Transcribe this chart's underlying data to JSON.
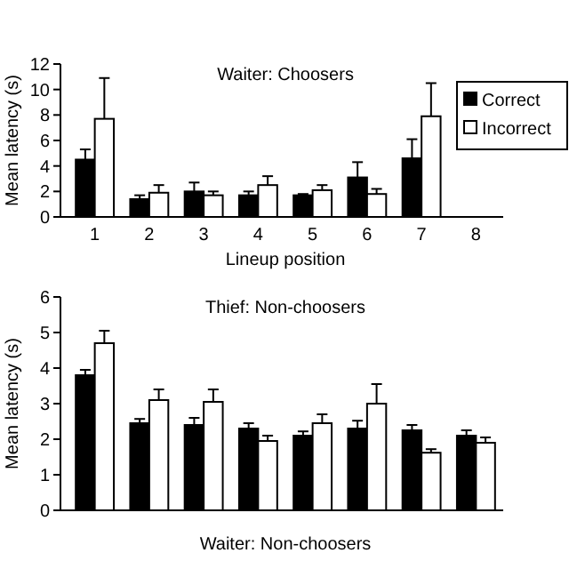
{
  "chart_data": [
    {
      "type": "bar",
      "title": "Waiter: Choosers",
      "xlabel": "Lineup position",
      "ylabel": "Mean latency (s)",
      "categories": [
        "1",
        "2",
        "3",
        "4",
        "5",
        "6",
        "7",
        "8"
      ],
      "ylim": [
        0,
        12
      ],
      "yticks": [
        0,
        2,
        4,
        6,
        8,
        10,
        12
      ],
      "legend": "right",
      "grid": false,
      "series": [
        {
          "name": "Correct",
          "color": "#000000",
          "values": [
            4.5,
            1.4,
            2.0,
            1.7,
            1.7,
            3.1,
            4.6,
            null
          ],
          "errors": [
            [
              4.5,
              5.3
            ],
            [
              1.4,
              1.7
            ],
            [
              2.0,
              2.7
            ],
            [
              1.7,
              2.0
            ],
            [
              1.7,
              1.8
            ],
            [
              3.1,
              4.3
            ],
            [
              4.6,
              6.1
            ],
            null
          ]
        },
        {
          "name": "Incorrect",
          "color": "#ffffff",
          "values": [
            7.7,
            1.9,
            1.7,
            2.5,
            2.1,
            1.8,
            7.9,
            null
          ],
          "errors": [
            [
              7.7,
              10.9
            ],
            [
              1.9,
              2.5
            ],
            [
              1.7,
              2.0
            ],
            [
              2.5,
              3.2
            ],
            [
              2.1,
              2.5
            ],
            [
              1.8,
              2.2
            ],
            [
              7.9,
              10.5
            ],
            null
          ]
        }
      ]
    },
    {
      "type": "bar",
      "title": "Thief: Non-choosers",
      "ylabel": "Mean latency (s)",
      "categories": [
        null,
        null,
        null,
        null,
        null,
        null,
        null,
        null
      ],
      "ylim": [
        0,
        6
      ],
      "yticks": [
        0,
        1,
        2,
        3,
        4,
        5,
        6
      ],
      "grid": false,
      "series": [
        {
          "color": "#000000",
          "values": [
            3.8,
            2.45,
            2.4,
            2.3,
            2.1,
            2.3,
            2.25,
            2.1
          ],
          "errors": [
            [
              3.8,
              3.95
            ],
            [
              2.45,
              2.57
            ],
            [
              2.4,
              2.6
            ],
            [
              2.3,
              2.45
            ],
            [
              2.1,
              2.22
            ],
            [
              2.3,
              2.52
            ],
            [
              2.25,
              2.4
            ],
            [
              2.1,
              2.25
            ]
          ]
        },
        {
          "color": "#ffffff",
          "values": [
            4.7,
            3.1,
            3.05,
            1.95,
            2.45,
            3.0,
            1.62,
            1.9
          ],
          "errors": [
            [
              4.7,
              5.05
            ],
            [
              3.1,
              3.4
            ],
            [
              3.05,
              3.4
            ],
            [
              1.95,
              2.1
            ],
            [
              2.45,
              2.7
            ],
            [
              3.0,
              3.55
            ],
            [
              1.62,
              1.72
            ],
            [
              1.9,
              2.05
            ]
          ]
        }
      ]
    },
    {
      "type": "other",
      "title": "Waiter: Non-choosers"
    }
  ]
}
